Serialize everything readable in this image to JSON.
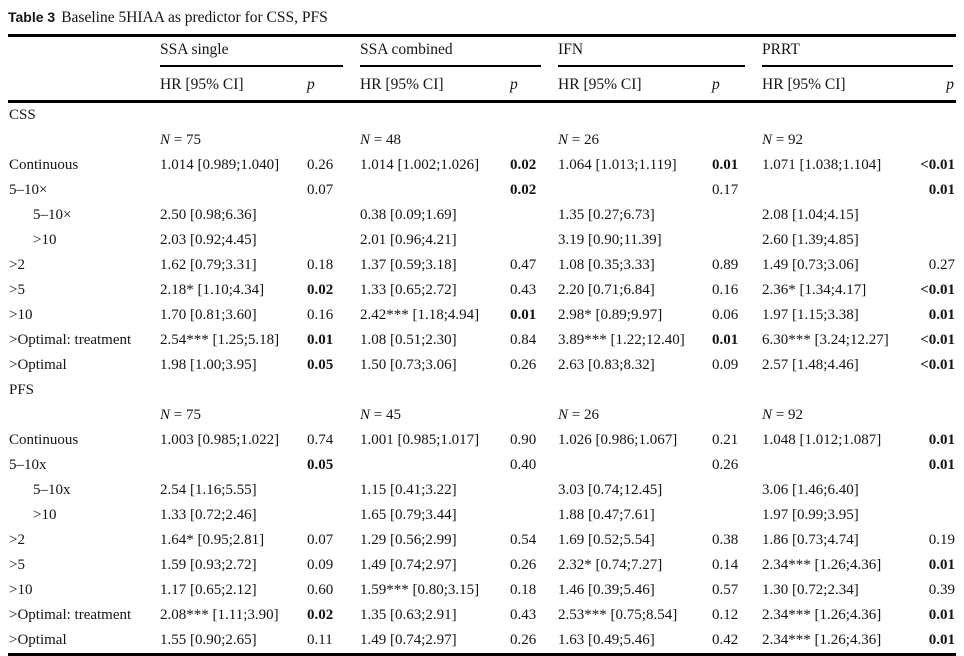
{
  "caption": {
    "label": "Table 3",
    "text": "Baseline 5HIAA as predictor for CSS, PFS"
  },
  "table": {
    "groups": [
      {
        "name": "SSA single"
      },
      {
        "name": "SSA combined"
      },
      {
        "name": "IFN"
      },
      {
        "name": "PRRT"
      }
    ],
    "subheader": {
      "hr": "HR [95% CI]",
      "p": "p"
    },
    "rows": [
      {
        "type": "section",
        "label": "CSS"
      },
      {
        "type": "n",
        "label": "",
        "values": [
          "N = 75",
          "N = 48",
          "N = 26",
          "N = 92"
        ]
      },
      {
        "label": "Continuous",
        "cells": [
          "1.014 [0.989;1.040]",
          "0.26",
          "1.014 [1.002;1.026]",
          {
            "t": "0.02",
            "b": true
          },
          "1.064 [1.013;1.119]",
          {
            "t": "0.01",
            "b": true
          },
          "1.071 [1.038;1.104]",
          {
            "t": "<0.01",
            "b": true
          }
        ]
      },
      {
        "label": "5–10×",
        "cells": [
          "",
          "0.07",
          "",
          {
            "t": "0.02",
            "b": true
          },
          "",
          "0.17",
          "",
          {
            "t": "0.01",
            "b": true
          }
        ]
      },
      {
        "label": "5–10×",
        "indent": true,
        "cells": [
          "2.50 [0.98;6.36]",
          "",
          "0.38 [0.09;1.69]",
          "",
          "1.35 [0.27;6.73]",
          "",
          "2.08 [1.04;4.15]",
          ""
        ]
      },
      {
        "label": ">10",
        "indent": true,
        "cells": [
          "2.03 [0.92;4.45]",
          "",
          "2.01 [0.96;4.21]",
          "",
          "3.19 [0.90;11.39]",
          "",
          "2.60 [1.39;4.85]",
          ""
        ]
      },
      {
        "label": ">2",
        "cells": [
          "1.62 [0.79;3.31]",
          "0.18",
          "1.37 [0.59;3.18]",
          "0.47",
          "1.08 [0.35;3.33]",
          "0.89",
          "1.49 [0.73;3.06]",
          "0.27"
        ]
      },
      {
        "label": ">5",
        "cells": [
          "2.18* [1.10;4.34]",
          {
            "t": "0.02",
            "b": true
          },
          "1.33 [0.65;2.72]",
          "0.43",
          "2.20 [0.71;6.84]",
          "0.16",
          "2.36* [1.34;4.17]",
          {
            "t": "<0.01",
            "b": true
          }
        ]
      },
      {
        "label": ">10",
        "cells": [
          "1.70 [0.81;3.60]",
          "0.16",
          "2.42*** [1.18;4.94]",
          {
            "t": "0.01",
            "b": true
          },
          "2.98* [0.89;9.97]",
          "0.06",
          "1.97 [1.15;3.38]",
          {
            "t": "0.01",
            "b": true
          }
        ]
      },
      {
        "label": ">Optimal: treatment",
        "cells": [
          "2.54*** [1.25;5.18]",
          {
            "t": "0.01",
            "b": true
          },
          "1.08 [0.51;2.30]",
          "0.84",
          "3.89*** [1.22;12.40]",
          {
            "t": "0.01",
            "b": true
          },
          "6.30*** [3.24;12.27]",
          {
            "t": "<0.01",
            "b": true
          }
        ]
      },
      {
        "label": ">Optimal",
        "cells": [
          "1.98 [1.00;3.95]",
          {
            "t": "0.05",
            "b": true
          },
          "1.50 [0.73;3.06]",
          "0.26",
          "2.63 [0.83;8.32]",
          "0.09",
          "2.57 [1.48;4.46]",
          {
            "t": "<0.01",
            "b": true
          }
        ]
      },
      {
        "type": "section",
        "label": "PFS"
      },
      {
        "type": "n",
        "label": "",
        "values": [
          "N = 75",
          "N = 45",
          "N = 26",
          "N = 92"
        ]
      },
      {
        "label": "Continuous",
        "cells": [
          "1.003 [0.985;1.022]",
          "0.74",
          "1.001 [0.985;1.017]",
          "0.90",
          "1.026 [0.986;1.067]",
          "0.21",
          "1.048 [1.012;1.087]",
          {
            "t": "0.01",
            "b": true
          }
        ]
      },
      {
        "label": "5–10x",
        "cells": [
          "",
          {
            "t": "0.05",
            "b": true
          },
          "",
          "0.40",
          "",
          "0.26",
          "",
          {
            "t": "0.01",
            "b": true
          }
        ]
      },
      {
        "label": "5–10x",
        "indent": true,
        "cells": [
          "2.54 [1.16;5.55]",
          "",
          "1.15 [0.41;3.22]",
          "",
          "3.03 [0.74;12.45]",
          "",
          "3.06 [1.46;6.40]",
          ""
        ]
      },
      {
        "label": ">10",
        "indent": true,
        "cells": [
          "1.33 [0.72;2.46]",
          "",
          "1.65 [0.79;3.44]",
          "",
          "1.88 [0.47;7.61]",
          "",
          "1.97 [0.99;3.95]",
          ""
        ]
      },
      {
        "label": ">2",
        "cells": [
          "1.64* [0.95;2.81]",
          "0.07",
          "1.29 [0.56;2.99]",
          "0.54",
          "1.69 [0.52;5.54]",
          "0.38",
          "1.86 [0.73;4.74]",
          "0.19"
        ]
      },
      {
        "label": ">5",
        "cells": [
          "1.59 [0.93;2.72]",
          "0.09",
          "1.49 [0.74;2.97]",
          "0.26",
          "2.32* [0.74;7.27]",
          "0.14",
          "2.34*** [1.26;4.36]",
          {
            "t": "0.01",
            "b": true
          }
        ]
      },
      {
        "label": ">10",
        "cells": [
          "1.17 [0.65;2.12]",
          "0.60",
          "1.59*** [0.80;3.15]",
          "0.18",
          "1.46 [0.39;5.46]",
          "0.57",
          "1.30 [0.72;2.34]",
          "0.39"
        ]
      },
      {
        "label": ">Optimal: treatment",
        "cells": [
          "2.08*** [1.11;3.90]",
          {
            "t": "0.02",
            "b": true
          },
          "1.35 [0.63;2.91]",
          "0.43",
          "2.53*** [0.75;8.54]",
          "0.12",
          "2.34*** [1.26;4.36]",
          {
            "t": "0.01",
            "b": true
          }
        ]
      },
      {
        "label": ">Optimal",
        "cells": [
          "1.55 [0.90;2.65]",
          "0.11",
          "1.49 [0.74;2.97]",
          "0.26",
          "1.63 [0.49;5.46]",
          "0.42",
          "2.34*** [1.26;4.36]",
          {
            "t": "0.01",
            "b": true
          }
        ]
      }
    ]
  }
}
